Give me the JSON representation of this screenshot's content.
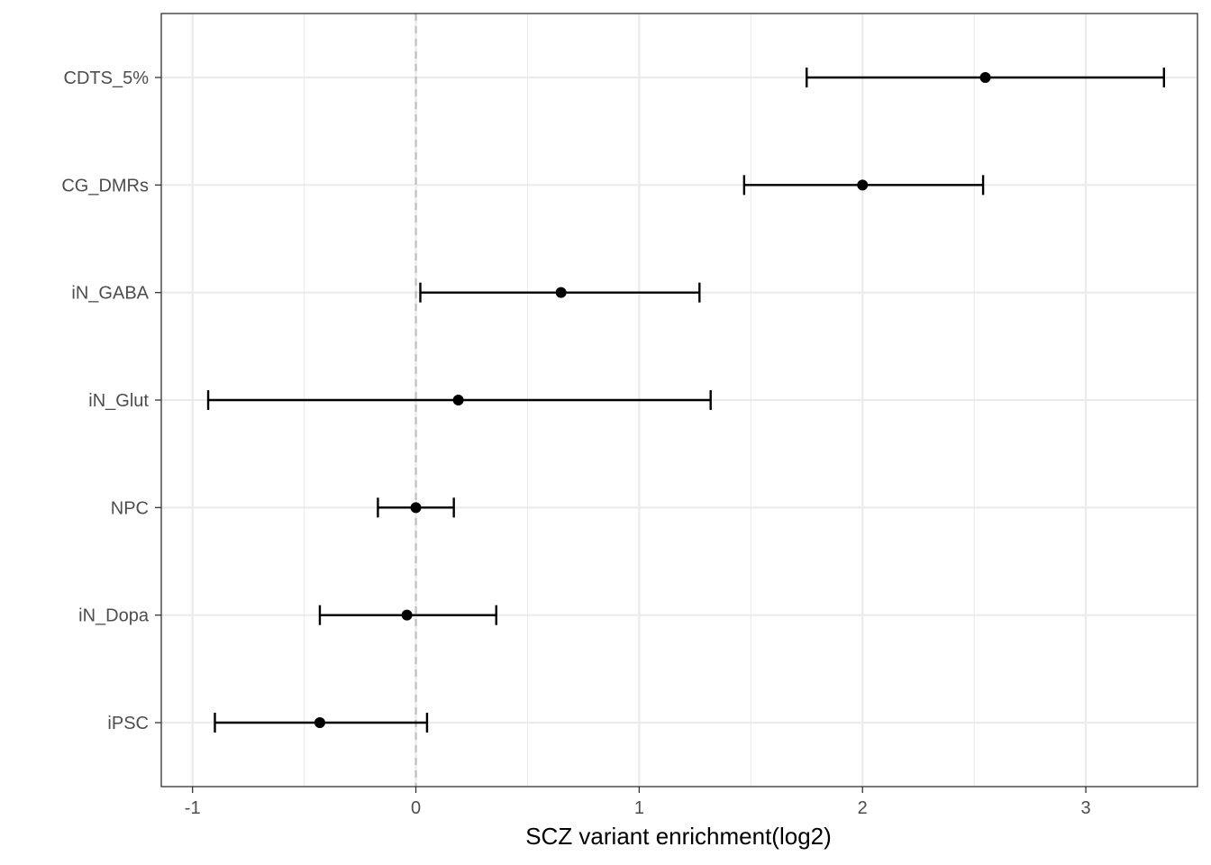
{
  "chart_data": {
    "type": "scatter",
    "subtype": "forest-plot",
    "title": "",
    "xlabel": "SCZ variant enrichment(log2)",
    "ylabel": "",
    "xlim": [
      -1.14,
      3.5
    ],
    "x_ticks": [
      -1,
      0,
      1,
      2,
      3
    ],
    "x_tick_labels": [
      "-1",
      "0",
      "1",
      "2",
      "3"
    ],
    "reference_line": 0,
    "grid": true,
    "categories": [
      "CDTS_5%",
      "CG_DMRs",
      "iN_GABA",
      "iN_Glut",
      "NPC",
      "iN_Dopa",
      "iPSC"
    ],
    "estimates": [
      2.55,
      2.0,
      0.65,
      0.19,
      0.0,
      -0.04,
      -0.43
    ],
    "lower": [
      1.75,
      1.47,
      0.02,
      -0.93,
      -0.17,
      -0.43,
      -0.9
    ],
    "upper": [
      3.35,
      2.54,
      1.27,
      1.32,
      0.17,
      0.36,
      0.05
    ]
  },
  "colors": {
    "point": "#000000",
    "errorbar": "#000000",
    "grid": "#ebebeb",
    "reference_line": "#bebebe",
    "panel_border": "#333333"
  }
}
